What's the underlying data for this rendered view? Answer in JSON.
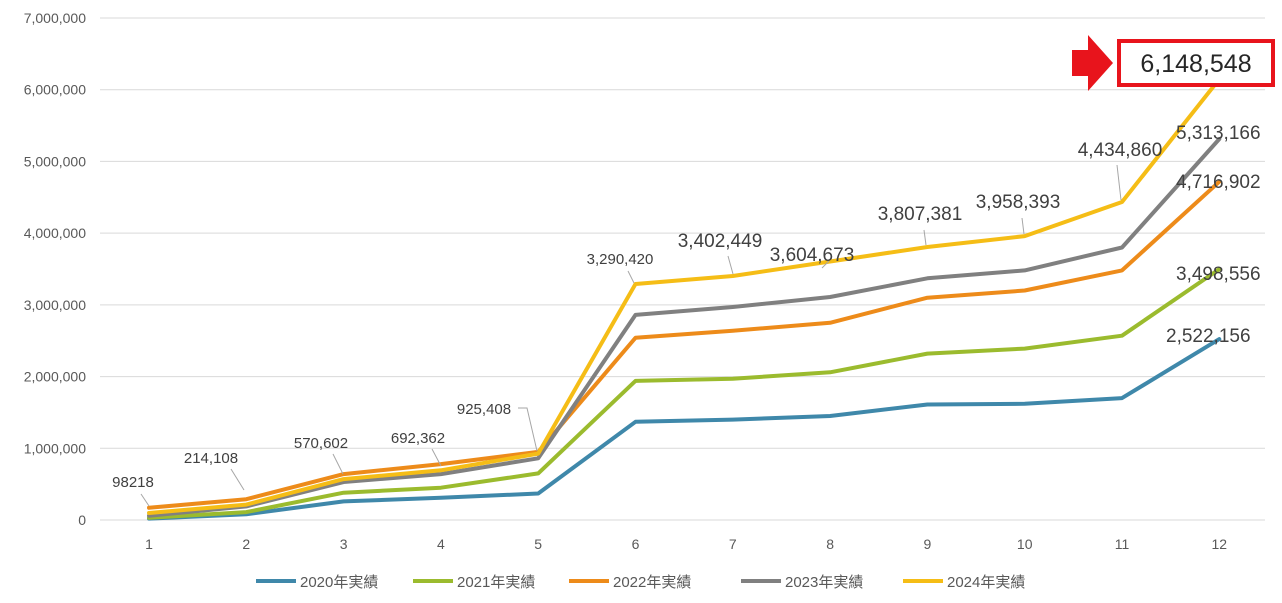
{
  "chart_data": {
    "type": "line",
    "title": "",
    "xlabel": "",
    "ylabel": "",
    "ylim": [
      0,
      7000000
    ],
    "yticks": [
      "0",
      "1,000,000",
      "2,000,000",
      "3,000,000",
      "4,000,000",
      "5,000,000",
      "6,000,000",
      "7,000,000"
    ],
    "ytick_values": [
      0,
      1000000,
      2000000,
      3000000,
      4000000,
      5000000,
      6000000,
      7000000
    ],
    "categories": [
      "1",
      "2",
      "3",
      "4",
      "5",
      "6",
      "7",
      "8",
      "9",
      "10",
      "11",
      "12"
    ],
    "grid": "horizontal",
    "legend_position": "bottom",
    "series": [
      {
        "name": "2020年実績",
        "color": "#3f88aa",
        "values": [
          20000,
          80000,
          260000,
          310000,
          370000,
          1370000,
          1400000,
          1450000,
          1610000,
          1620000,
          1700000,
          2522156
        ]
      },
      {
        "name": "2021年実績",
        "color": "#9bbb2e",
        "values": [
          30000,
          110000,
          380000,
          450000,
          650000,
          1940000,
          1970000,
          2060000,
          2320000,
          2390000,
          2570000,
          3498556
        ]
      },
      {
        "name": "2022年実績",
        "color": "#ed8b1a",
        "values": [
          170000,
          290000,
          640000,
          780000,
          950000,
          2540000,
          2640000,
          2750000,
          3100000,
          3200000,
          3480000,
          4716902
        ]
      },
      {
        "name": "2023年実績",
        "color": "#808080",
        "values": [
          60000,
          190000,
          530000,
          640000,
          860000,
          2860000,
          2970000,
          3110000,
          3370000,
          3480000,
          3800000,
          5313166
        ]
      },
      {
        "name": "2024年実績",
        "color": "#f5bd16",
        "values": [
          98218,
          214108,
          570602,
          692362,
          925408,
          3290420,
          3402449,
          3604673,
          3807381,
          3958393,
          4434860,
          6148548
        ]
      }
    ],
    "data_labels": [
      {
        "text": "98218",
        "series": 4,
        "index": 0
      },
      {
        "text": "214,108",
        "series": 4,
        "index": 1
      },
      {
        "text": "570,602",
        "series": 4,
        "index": 2
      },
      {
        "text": "692,362",
        "series": 4,
        "index": 3
      },
      {
        "text": "925,408",
        "series": 4,
        "index": 4
      },
      {
        "text": "3,290,420",
        "series": 4,
        "index": 5
      },
      {
        "text": "3,402,449",
        "series": 4,
        "index": 6
      },
      {
        "text": "3,604,673",
        "series": 4,
        "index": 7
      },
      {
        "text": "3,807,381",
        "series": 4,
        "index": 8
      },
      {
        "text": "3,958,393",
        "series": 4,
        "index": 9
      },
      {
        "text": "4,434,860",
        "series": 4,
        "index": 10
      },
      {
        "text": "5,313,166",
        "series": 3,
        "index": 11
      },
      {
        "text": "4,716,902",
        "series": 2,
        "index": 11
      },
      {
        "text": "3,498,556",
        "series": 1,
        "index": 11
      },
      {
        "text": "2,522,156",
        "series": 0,
        "index": 11
      }
    ],
    "callout": {
      "text": "6,148,548",
      "color": "#e8141c",
      "series": 4,
      "index": 11
    }
  }
}
